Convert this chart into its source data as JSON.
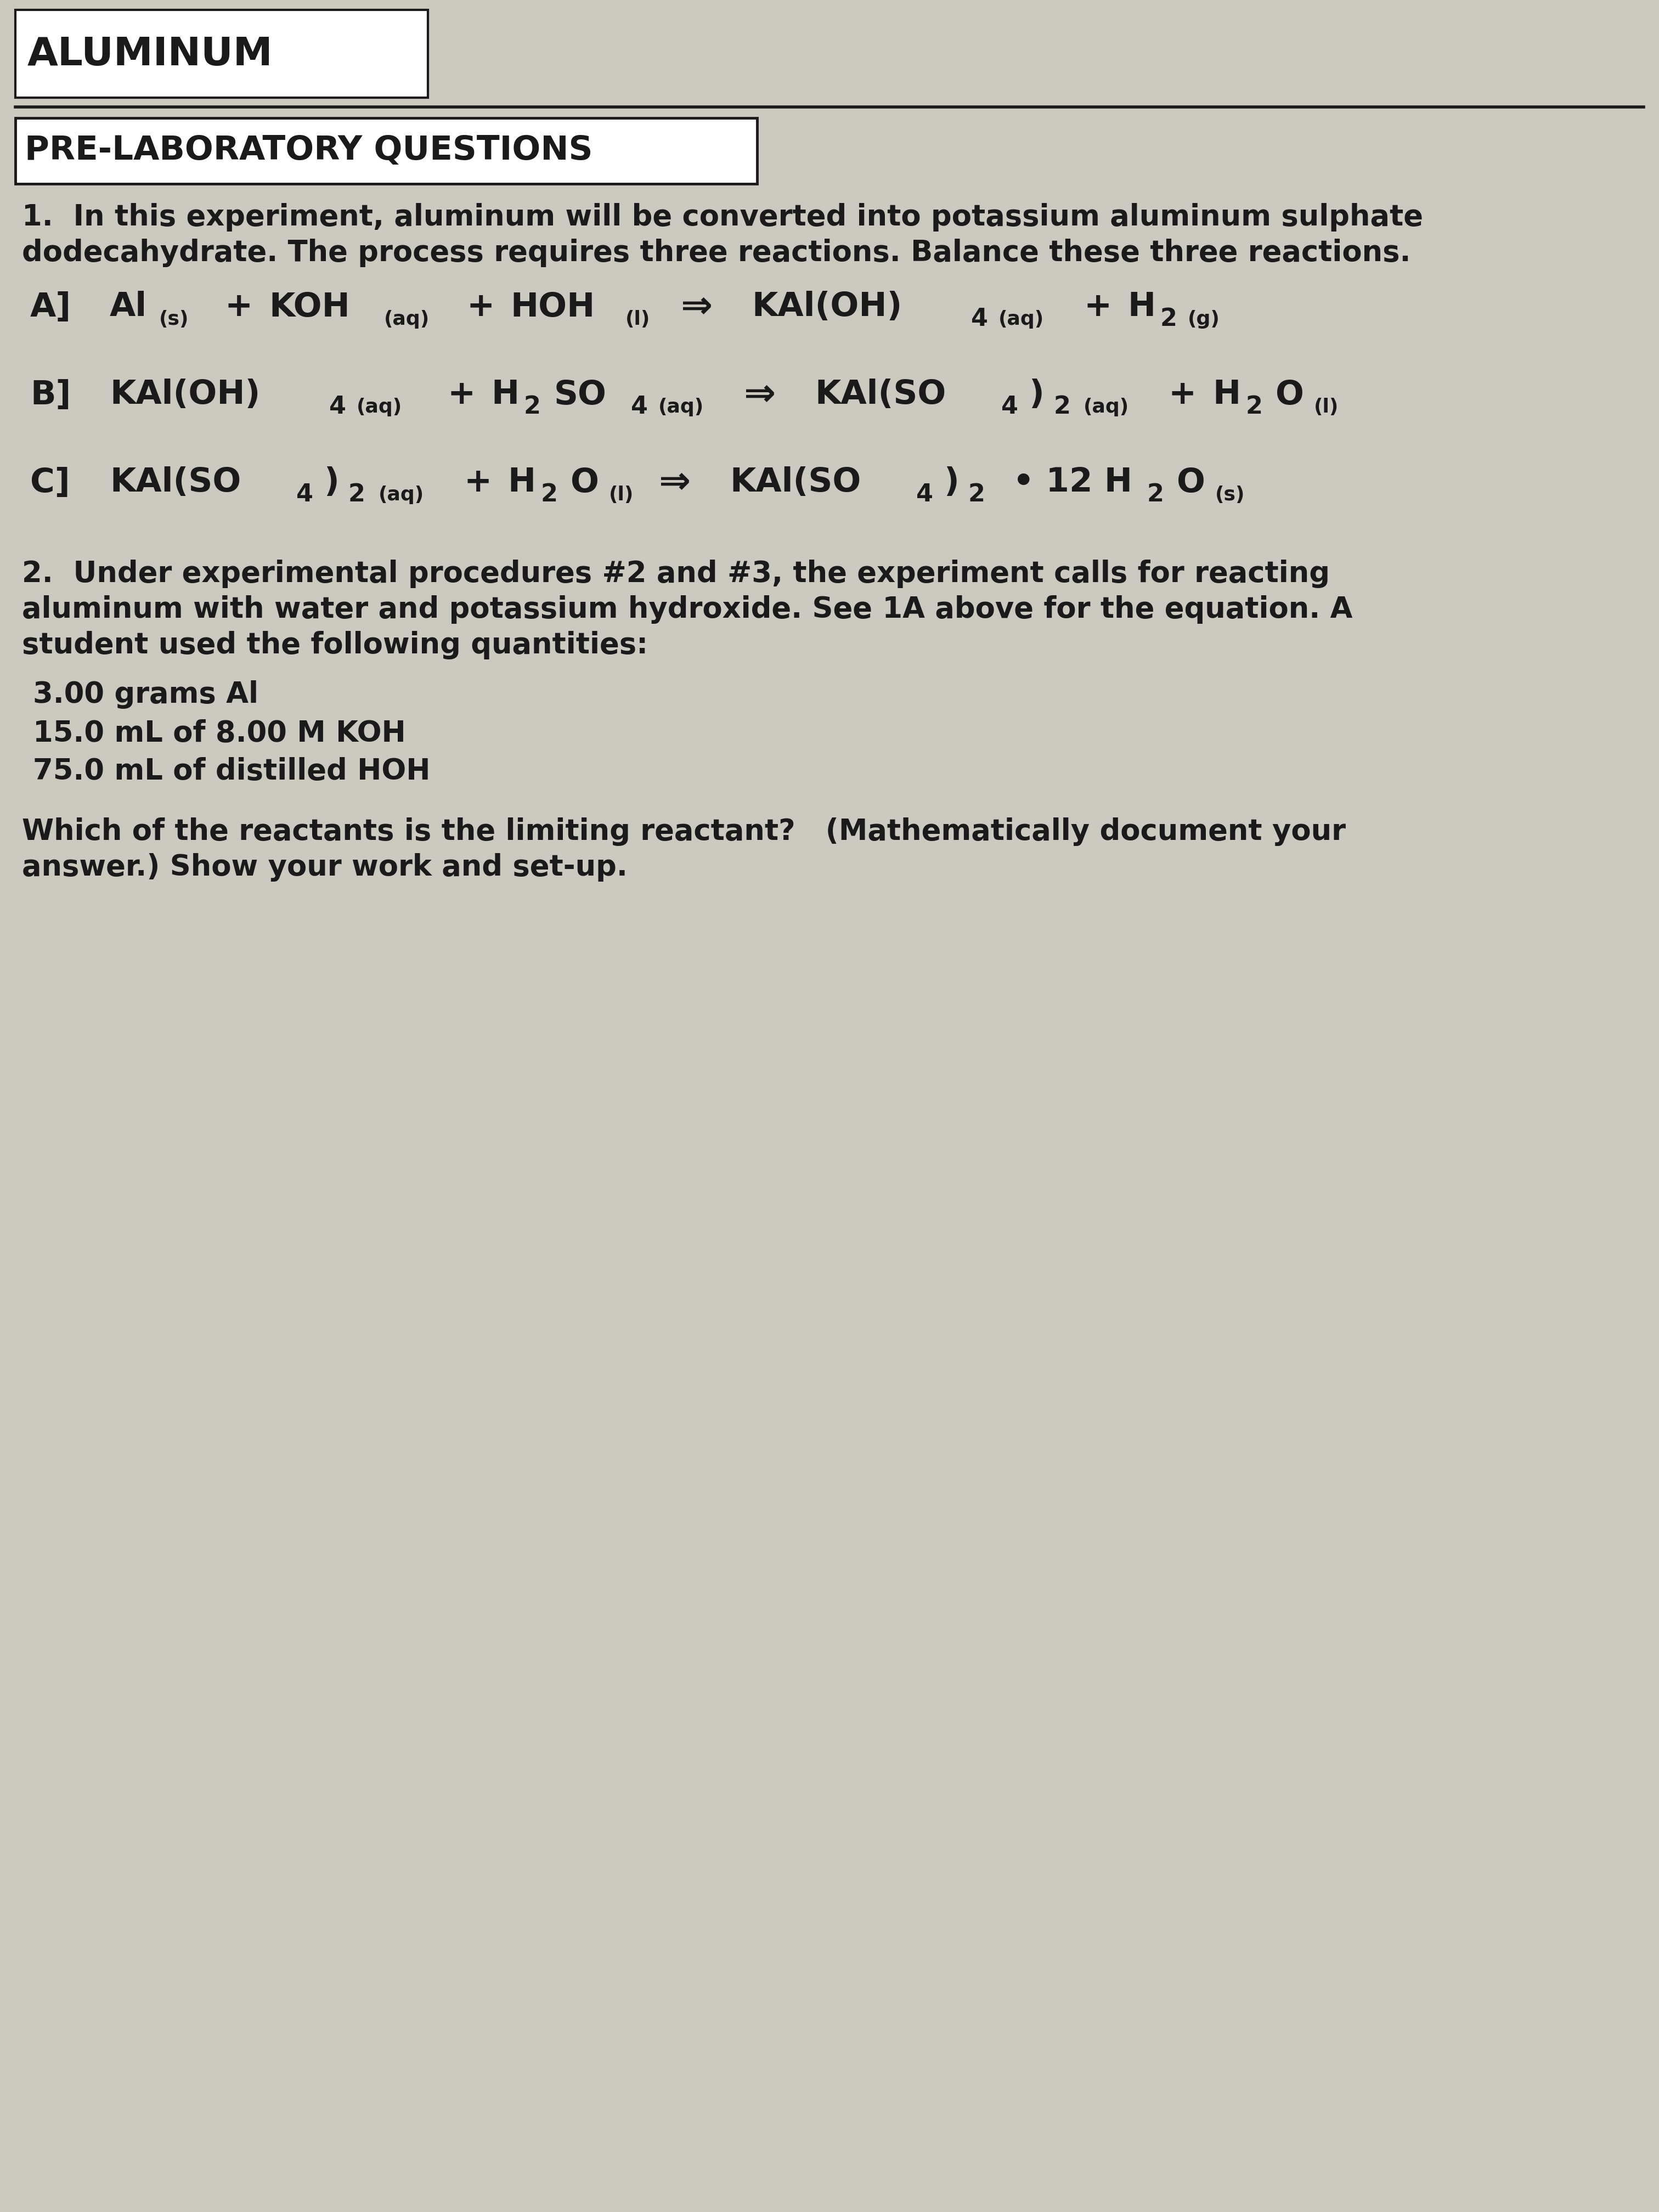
{
  "bg_color": "#ccc9c0",
  "text_color": "#1a1a1a",
  "title_box_label": "ALUMINUM",
  "section_label": "PRE-LABORATORY QUESTIONS",
  "q1_line1": "1.  In this experiment, aluminum will be converted into potassium aluminum sulphate",
  "q1_line2": "dodecahydrate. The process requires three reactions. Balance these three reactions.",
  "q2_line1": "2.  Under experimental procedures #2 and #3, the experiment calls for reacting",
  "q2_line2": "aluminum with water and potassium hydroxide. See 1A above for the equation. A",
  "q2_line3": "student used the following quantities:",
  "qty1": "3.00 grams Al",
  "qty2": "15.0 mL of 8.00 M KOH",
  "qty3": "75.0 mL of distilled HOH",
  "q2_q1": "Which of the reactants is the limiting reactant?   (Mathematically document your",
  "q2_q2": "answer.) Show your work and set-up."
}
